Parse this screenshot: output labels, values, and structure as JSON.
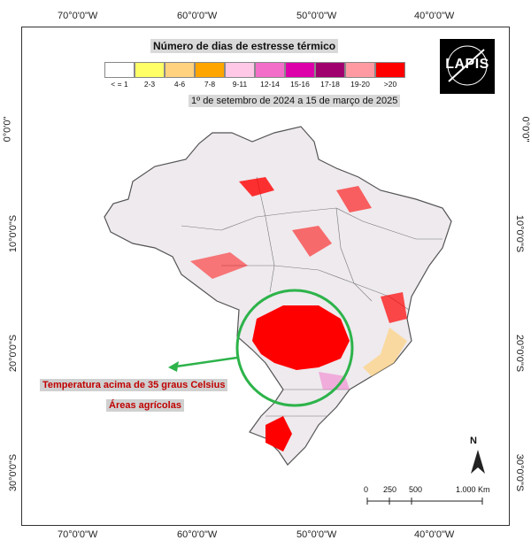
{
  "title": "Número de dias de estresse térmico",
  "period": "1º de setembro de 2024 a 15 de março de 2025",
  "logo": "LAPIS",
  "legend": [
    {
      "label": "< = 1",
      "color": "#ffffff"
    },
    {
      "label": "2-3",
      "color": "#ffff66"
    },
    {
      "label": "4-6",
      "color": "#ffd27f"
    },
    {
      "label": "7-8",
      "color": "#ffa500"
    },
    {
      "label": "9-11",
      "color": "#ffc8e6"
    },
    {
      "label": "12-14",
      "color": "#f26ec8"
    },
    {
      "label": "15-16",
      "color": "#dd00aa"
    },
    {
      "label": "17-18",
      "color": "#a0006e"
    },
    {
      "label": "19-20",
      "color": "#ff9aa2"
    },
    {
      "label": ">20",
      "color": "#ff0000"
    }
  ],
  "axes": {
    "top": [
      "70°0'0\"W",
      "60°0'0\"W",
      "50°0'0\"W",
      "40°0'0\"W"
    ],
    "bottom": [
      "70°0'0\"W",
      "60°0'0\"W",
      "50°0'0\"W",
      "40°0'0\"W"
    ],
    "left": [
      "0°0'0\"",
      "10°0'0\"S",
      "20°0'0\"S",
      "30°0'0\"S"
    ],
    "right": [
      "0°0'0\"",
      "10°0'0\"S",
      "20°0'0\"S",
      "30°0'0\"S"
    ]
  },
  "annotation": {
    "line1": "Temperatura acima de 35 graus Celsius",
    "line2": "Áreas agrícolas"
  },
  "north_label": "N",
  "scale": {
    "labels": [
      "0",
      "250",
      "500",
      "1.000 Km"
    ]
  },
  "colors": {
    "highlight_circle": "#2db34a",
    "map_fill": "#eeeaee",
    "hot": "#ff0000"
  }
}
